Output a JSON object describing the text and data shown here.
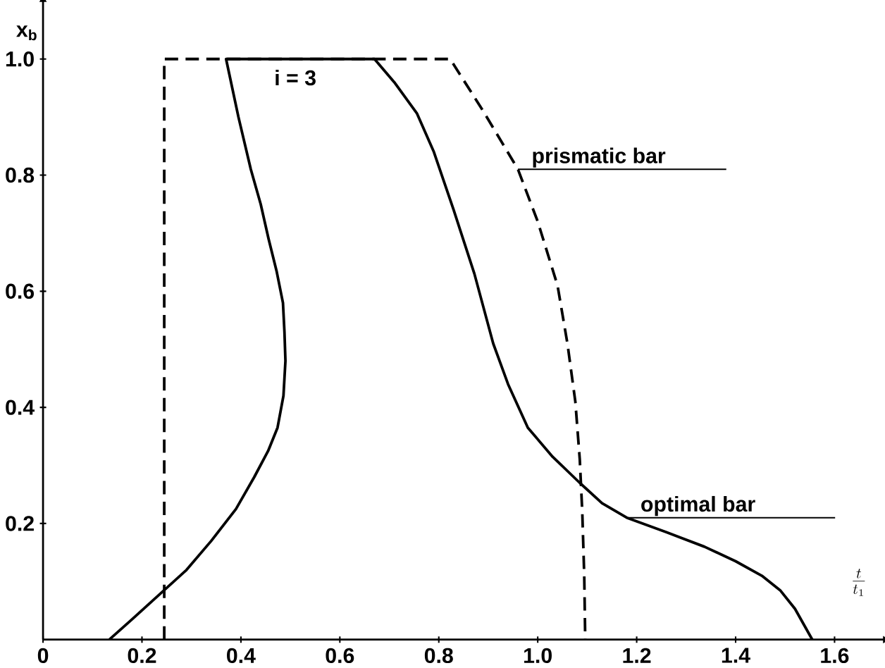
{
  "chart_data": {
    "type": "line",
    "xlabel": "\\frac{t}{t_1}",
    "ylabel": "x$_{b}$",
    "annotations": [
      "i = 3"
    ],
    "xlim": [
      0,
      1.7
    ],
    "ylim": [
      0,
      1.1
    ],
    "xticks": [
      0,
      0.2,
      0.4,
      0.6,
      0.8,
      {
        "value": 1.0,
        "label": "1.0"
      },
      1.2,
      1.4,
      1.6
    ],
    "yticks": [
      0.2,
      0.4,
      0.6,
      0.8,
      {
        "value": 1.0,
        "label": "1.0"
      }
    ],
    "legend": false,
    "marker": "none",
    "series": [
      {
        "name": "optimal bar",
        "color": "#000000",
        "line_style": "solid",
        "x": [
          0.134,
          0.18,
          0.233,
          0.29,
          0.34,
          0.39,
          0.427,
          0.455,
          0.474,
          0.486,
          0.49,
          0.488,
          0.485,
          0.472,
          0.456,
          0.44,
          0.42,
          0.395,
          0.37,
          0.67,
          0.71,
          0.756,
          0.79,
          0.83,
          0.872,
          0.91,
          0.94,
          0.98,
          1.03,
          1.085,
          1.13,
          1.18,
          1.26,
          1.337,
          1.4,
          1.453,
          1.49,
          1.52,
          1.555
        ],
        "values": [
          0,
          0.035,
          0.076,
          0.12,
          0.17,
          0.225,
          0.28,
          0.325,
          0.365,
          0.42,
          0.48,
          0.53,
          0.58,
          0.635,
          0.69,
          0.75,
          0.81,
          0.9,
          1.0,
          1.0,
          0.96,
          0.906,
          0.84,
          0.74,
          0.63,
          0.51,
          0.44,
          0.365,
          0.315,
          0.27,
          0.235,
          0.21,
          0.185,
          0.16,
          0.135,
          0.11,
          0.085,
          0.053,
          0
        ]
      },
      {
        "name": "prismatic bar",
        "color": "#000000",
        "line_style": "dashed",
        "x": [
          0.245,
          0.245,
          0.823,
          0.89,
          0.96,
          1.0,
          1.04,
          1.06,
          1.076,
          1.085,
          1.09,
          1.094,
          1.096
        ],
        "values": [
          0,
          1.0,
          1.0,
          0.91,
          0.81,
          0.72,
          0.61,
          0.51,
          0.41,
          0.31,
          0.22,
          0.11,
          0
        ]
      }
    ]
  }
}
